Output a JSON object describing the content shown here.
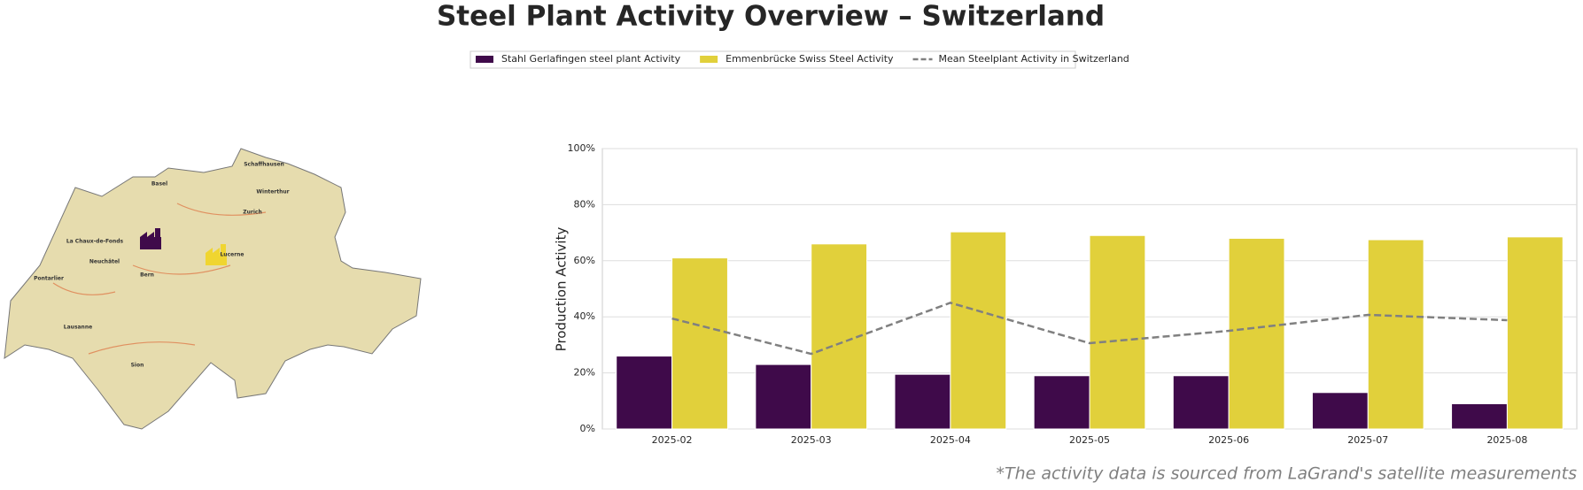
{
  "chart_data": {
    "type": "bar",
    "title": "Steel Plant Activity Overview – Switzerland",
    "ylabel": "Production Activity",
    "note": "*The activity data is sourced from LaGrand's satellite measurements",
    "categories": [
      "2025-02",
      "2025-03",
      "2025-04",
      "2025-05",
      "2025-06",
      "2025-07",
      "2025-08"
    ],
    "series": [
      {
        "name": "Stahl Gerlafingen steel plant Activity",
        "color": "#3f0a4a",
        "type": "bar",
        "values": [
          26,
          23,
          19.5,
          19,
          19,
          13,
          9
        ]
      },
      {
        "name": "Emmenbrücke Swiss Steel Activity",
        "color": "#e1d03b",
        "type": "bar",
        "values": [
          61,
          66,
          70.3,
          69,
          68,
          67.5,
          68.5
        ]
      },
      {
        "name": "Mean Steelplant Activity in Switzerland",
        "color": "#808080",
        "type": "line",
        "dashed": true,
        "values": [
          39.4,
          26.8,
          45,
          30.6,
          35,
          40.7,
          38.8
        ]
      }
    ],
    "ylim": [
      0,
      100
    ],
    "yticks": [
      {
        "value": 0,
        "label": "0%"
      },
      {
        "value": 20,
        "label": "20%"
      },
      {
        "value": 40,
        "label": "40%"
      },
      {
        "value": 60,
        "label": "60%"
      },
      {
        "value": 80,
        "label": "80%"
      },
      {
        "value": 100,
        "label": "100%"
      }
    ],
    "grid": true,
    "legend": "top"
  },
  "map": {
    "labels": [
      "Basel",
      "Zurich",
      "Winterthur",
      "Schaffhausen",
      "La Chaux-de-Fonds",
      "Neuchâtel",
      "Bern",
      "Pontarlier",
      "Lausanne",
      "Sion",
      "Lucerne"
    ]
  }
}
